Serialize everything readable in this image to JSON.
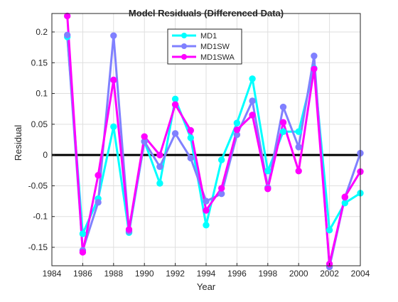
{
  "chart_data": {
    "type": "line",
    "title": "Model  Residuals  (Differenced  Data)",
    "xlabel": "Year",
    "ylabel": "Residual",
    "xlim": [
      1984,
      2004
    ],
    "ylim": [
      -0.18,
      0.23
    ],
    "grid": true,
    "legend_position": "top-center",
    "x_ticks": [
      "1984",
      "1986",
      "1988",
      "1990",
      "1992",
      "1994",
      "1996",
      "1998",
      "2000",
      "2002",
      "2004"
    ],
    "y_ticks": [
      "-0.15",
      "-0.1",
      "-0.05",
      "0",
      "0.05",
      "0.1",
      "0.15",
      "0.2"
    ],
    "x": [
      1985,
      1986,
      1987,
      1988,
      1989,
      1990,
      1991,
      1992,
      1993,
      1994,
      1995,
      1996,
      1997,
      1998,
      1999,
      2000,
      2001,
      2002,
      2003,
      2004
    ],
    "series": [
      {
        "name": "MD1",
        "color": "#00ffff",
        "values": [
          0.192,
          -0.128,
          -0.071,
          0.046,
          -0.126,
          0.022,
          -0.046,
          0.091,
          0.028,
          -0.114,
          -0.008,
          0.052,
          0.124,
          -0.026,
          0.038,
          0.038,
          0.141,
          -0.122,
          -0.078,
          -0.062
        ]
      },
      {
        "name": "MD1SW",
        "color": "#8080ff",
        "values": [
          0.195,
          -0.155,
          -0.077,
          0.194,
          -0.124,
          0.022,
          -0.019,
          0.035,
          -0.005,
          -0.075,
          -0.063,
          0.033,
          0.088,
          -0.053,
          0.078,
          0.013,
          0.161,
          -0.182,
          -0.069,
          0.003
        ]
      },
      {
        "name": "MD1SWA",
        "color": "#ff00ff",
        "values": [
          0.226,
          -0.158,
          -0.033,
          0.122,
          -0.121,
          0.03,
          0.0,
          0.082,
          0.04,
          -0.09,
          -0.054,
          0.041,
          0.065,
          -0.055,
          0.053,
          -0.026,
          0.14,
          -0.177,
          -0.068,
          -0.027
        ]
      }
    ],
    "reference_line": {
      "y": 0,
      "color": "#000000"
    }
  }
}
